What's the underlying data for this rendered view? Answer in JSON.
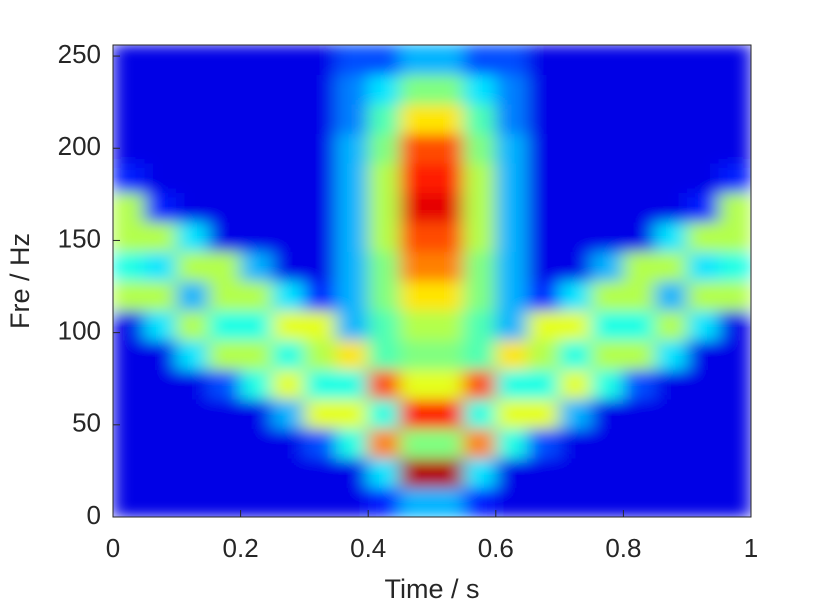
{
  "chart_data": {
    "type": "heatmap",
    "xlabel": "Time / s",
    "ylabel": "Fre / Hz",
    "x": [
      0.025,
      0.075,
      0.125,
      0.175,
      0.225,
      0.275,
      0.325,
      0.375,
      0.425,
      0.475,
      0.525,
      0.575,
      0.625,
      0.675,
      0.725,
      0.775,
      0.825,
      0.875,
      0.925,
      0.975
    ],
    "y": [
      8,
      24,
      40,
      56,
      72,
      88,
      104,
      120,
      136,
      152,
      168,
      184,
      200,
      216,
      232,
      248
    ],
    "z": [
      [
        0.1,
        0.1,
        0.1,
        0.1,
        0.1,
        0.1,
        0.1,
        0.1,
        0.15,
        0.3,
        0.3,
        0.15,
        0.1,
        0.1,
        0.1,
        0.1,
        0.1,
        0.1,
        0.1,
        0.1
      ],
      [
        0.1,
        0.1,
        0.1,
        0.1,
        0.1,
        0.1,
        0.1,
        0.1,
        0.35,
        0.95,
        0.95,
        0.35,
        0.1,
        0.1,
        0.1,
        0.1,
        0.1,
        0.1,
        0.1,
        0.1
      ],
      [
        0.1,
        0.1,
        0.1,
        0.1,
        0.1,
        0.1,
        0.2,
        0.4,
        0.75,
        0.5,
        0.5,
        0.75,
        0.4,
        0.2,
        0.1,
        0.1,
        0.1,
        0.1,
        0.1,
        0.1
      ],
      [
        0.1,
        0.1,
        0.1,
        0.1,
        0.1,
        0.3,
        0.6,
        0.6,
        0.4,
        0.85,
        0.85,
        0.4,
        0.6,
        0.6,
        0.3,
        0.1,
        0.1,
        0.1,
        0.1,
        0.1
      ],
      [
        0.1,
        0.1,
        0.1,
        0.2,
        0.4,
        0.6,
        0.4,
        0.4,
        0.8,
        0.6,
        0.6,
        0.8,
        0.4,
        0.4,
        0.6,
        0.4,
        0.2,
        0.1,
        0.1,
        0.1
      ],
      [
        0.1,
        0.1,
        0.35,
        0.55,
        0.55,
        0.4,
        0.55,
        0.65,
        0.45,
        0.5,
        0.5,
        0.45,
        0.65,
        0.55,
        0.4,
        0.55,
        0.55,
        0.35,
        0.1,
        0.1
      ],
      [
        0.1,
        0.35,
        0.55,
        0.4,
        0.4,
        0.6,
        0.6,
        0.3,
        0.45,
        0.55,
        0.55,
        0.45,
        0.3,
        0.6,
        0.6,
        0.4,
        0.4,
        0.55,
        0.35,
        0.1
      ],
      [
        0.55,
        0.55,
        0.3,
        0.55,
        0.55,
        0.35,
        0.15,
        0.3,
        0.5,
        0.65,
        0.65,
        0.5,
        0.3,
        0.15,
        0.35,
        0.55,
        0.55,
        0.3,
        0.55,
        0.55
      ],
      [
        0.4,
        0.35,
        0.55,
        0.55,
        0.3,
        0.1,
        0.1,
        0.3,
        0.5,
        0.75,
        0.75,
        0.5,
        0.3,
        0.1,
        0.1,
        0.3,
        0.55,
        0.55,
        0.35,
        0.4
      ],
      [
        0.55,
        0.55,
        0.35,
        0.1,
        0.1,
        0.1,
        0.1,
        0.3,
        0.55,
        0.8,
        0.8,
        0.55,
        0.3,
        0.1,
        0.1,
        0.1,
        0.1,
        0.35,
        0.55,
        0.55
      ],
      [
        0.55,
        0.15,
        0.1,
        0.1,
        0.1,
        0.1,
        0.1,
        0.3,
        0.55,
        0.9,
        0.9,
        0.55,
        0.3,
        0.1,
        0.1,
        0.1,
        0.1,
        0.1,
        0.15,
        0.55
      ],
      [
        0.15,
        0.1,
        0.1,
        0.1,
        0.1,
        0.1,
        0.1,
        0.3,
        0.55,
        0.85,
        0.85,
        0.55,
        0.3,
        0.1,
        0.1,
        0.1,
        0.1,
        0.1,
        0.1,
        0.15
      ],
      [
        0.1,
        0.1,
        0.1,
        0.1,
        0.1,
        0.1,
        0.1,
        0.3,
        0.5,
        0.8,
        0.8,
        0.5,
        0.3,
        0.1,
        0.1,
        0.1,
        0.1,
        0.1,
        0.1,
        0.1
      ],
      [
        0.1,
        0.1,
        0.1,
        0.1,
        0.1,
        0.1,
        0.1,
        0.25,
        0.45,
        0.65,
        0.65,
        0.45,
        0.25,
        0.1,
        0.1,
        0.1,
        0.1,
        0.1,
        0.1,
        0.1
      ],
      [
        0.1,
        0.1,
        0.1,
        0.1,
        0.1,
        0.1,
        0.1,
        0.25,
        0.35,
        0.5,
        0.5,
        0.35,
        0.25,
        0.1,
        0.1,
        0.1,
        0.1,
        0.1,
        0.1,
        0.1
      ],
      [
        0.1,
        0.1,
        0.1,
        0.1,
        0.1,
        0.1,
        0.1,
        0.2,
        0.2,
        0.3,
        0.3,
        0.2,
        0.2,
        0.1,
        0.1,
        0.1,
        0.1,
        0.1,
        0.1,
        0.1
      ]
    ],
    "colormap": "jet",
    "clim": [
      0,
      1
    ],
    "xlim": [
      0,
      1
    ],
    "xticks": [
      0,
      0.2,
      0.4,
      0.6,
      0.8,
      1
    ],
    "ylim": [
      0,
      256
    ],
    "yticks": [
      0,
      50,
      100,
      150,
      200,
      250
    ]
  }
}
